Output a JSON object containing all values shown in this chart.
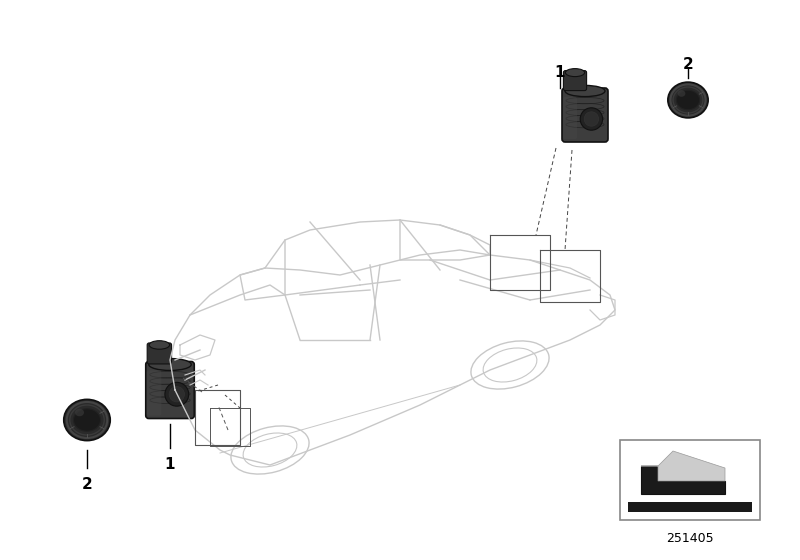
{
  "bg_color": "#ffffff",
  "car_line_color": "#c8c8c8",
  "car_lw": 1.0,
  "label_color": "#000000",
  "diagram_num": "251405",
  "sensor_dark": "#2a2a2a",
  "sensor_mid": "#3d3d3d",
  "sensor_light": "#555555",
  "cap_dark": "#252525",
  "cap_mid": "#3a3a3a",
  "cap_ring": "#4a4a4a",
  "leader_color": "#444444",
  "bracket_color": "#555555"
}
